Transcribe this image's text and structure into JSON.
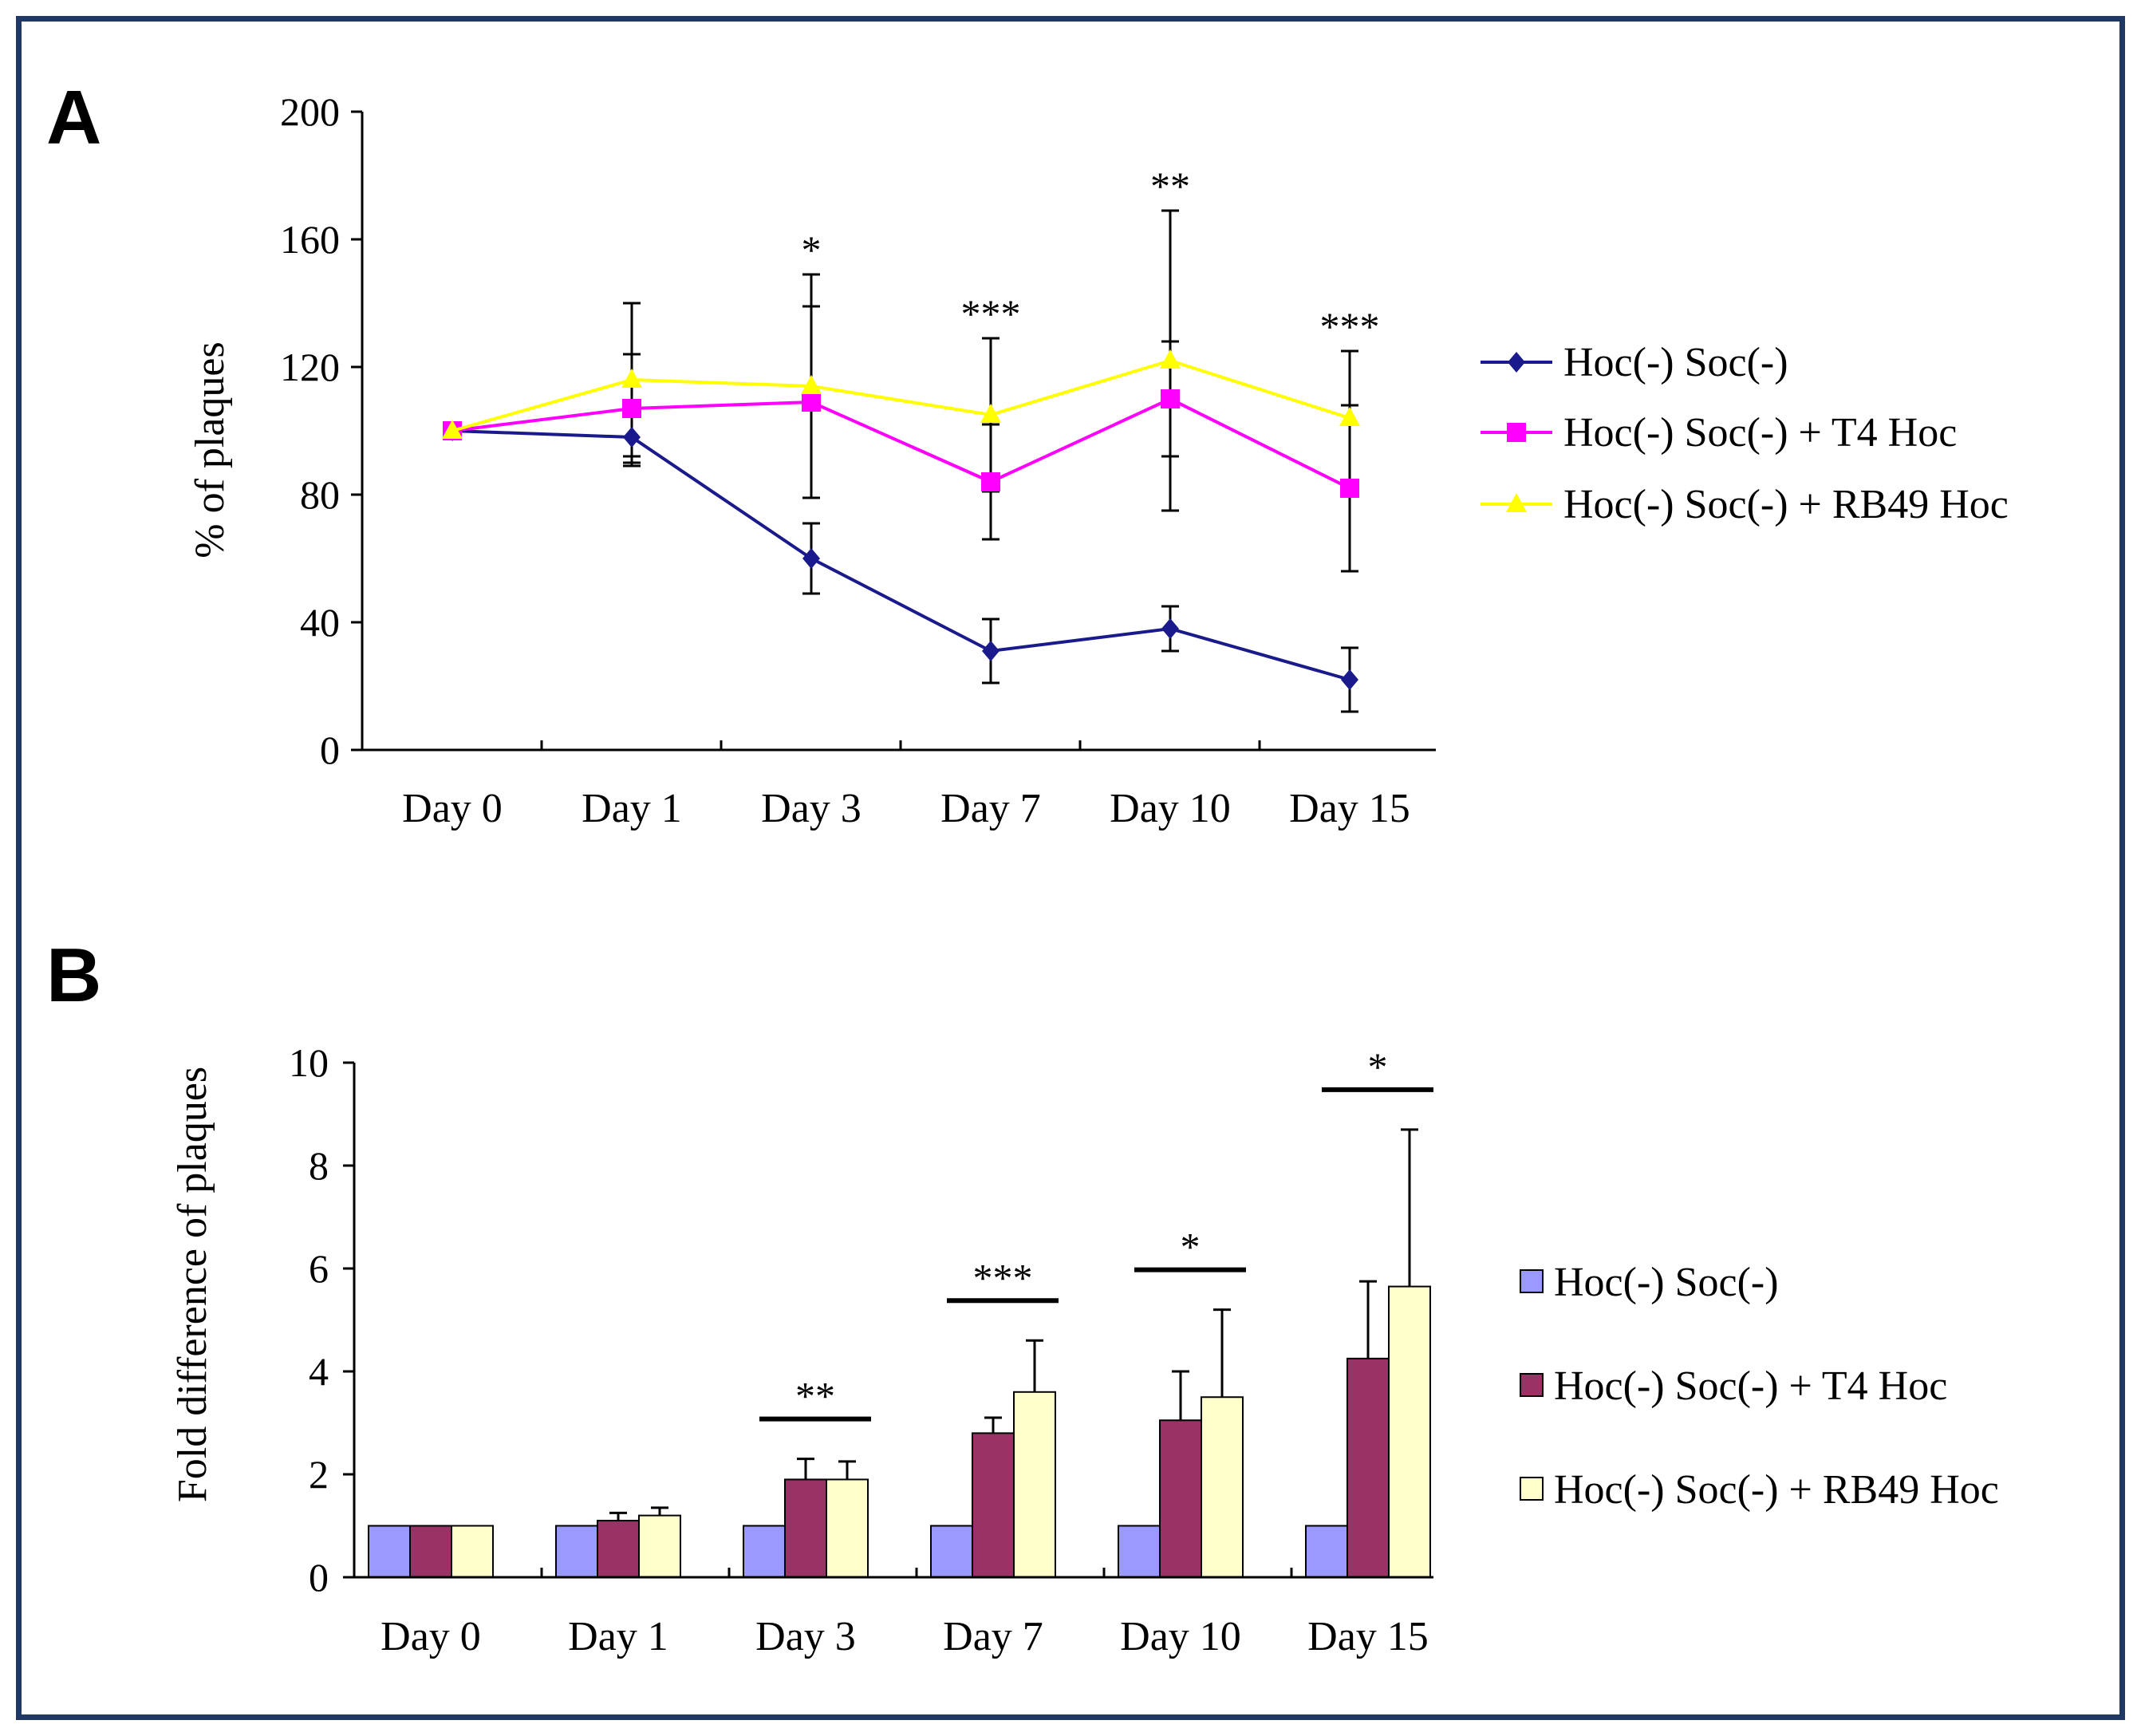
{
  "chart_data": [
    {
      "panel_label": "A",
      "type": "line",
      "ylabel": "% of plaques",
      "xlabel": "",
      "ylim": [
        0,
        200
      ],
      "yticks": [
        "0",
        "40",
        "80",
        "120",
        "160",
        "200"
      ],
      "categories": [
        "Day 0",
        "Day 1",
        "Day 3",
        "Day 7",
        "Day 10",
        "Day 15"
      ],
      "legend_position": "right",
      "series": [
        {
          "name": "Hoc(-) Soc(-)",
          "color": "#1a1a8c",
          "marker": "diamond",
          "values": [
            100,
            98,
            60,
            31,
            38,
            22
          ],
          "errors": [
            0,
            9,
            11,
            10,
            7,
            10
          ]
        },
        {
          "name": "Hoc(-) Soc(-) + T4 Hoc",
          "color": "#ff00ff",
          "marker": "square",
          "values": [
            100,
            107,
            109,
            84,
            110,
            82
          ],
          "errors": [
            0,
            17,
            30,
            18,
            18,
            26
          ]
        },
        {
          "name": "Hoc(-) Soc(-) + RB49 Hoc",
          "color": "#ffff00",
          "marker": "triangle",
          "values": [
            100,
            116,
            114,
            105,
            122,
            104
          ],
          "errors": [
            0,
            24,
            35,
            24,
            47,
            21
          ]
        }
      ],
      "annotations": [
        "",
        "",
        "*",
        "***",
        "**",
        "***"
      ]
    },
    {
      "panel_label": "B",
      "type": "bar",
      "ylabel": "Fold difference of plaques",
      "xlabel": "",
      "ylim": [
        0,
        10
      ],
      "yticks": [
        "0",
        "2",
        "4",
        "6",
        "8",
        "10"
      ],
      "categories": [
        "Day 0",
        "Day 1",
        "Day 3",
        "Day 7",
        "Day 10",
        "Day 15"
      ],
      "legend_position": "right",
      "series": [
        {
          "name": "Hoc(-) Soc(-)",
          "color": "#9999ff",
          "values": [
            1,
            1,
            1,
            1,
            1,
            1
          ],
          "errors": [
            0,
            0,
            0,
            0,
            0,
            0
          ]
        },
        {
          "name": "Hoc(-) Soc(-) + T4 Hoc",
          "color": "#993366",
          "values": [
            1,
            1.1,
            1.9,
            2.8,
            3.05,
            4.25
          ],
          "errors": [
            0,
            0.15,
            0.4,
            0.3,
            0.95,
            1.5
          ]
        },
        {
          "name": "Hoc(-) Soc(-) + RB49 Hoc",
          "color": "#ffffcc",
          "values": [
            1,
            1.2,
            1.9,
            3.6,
            3.5,
            5.65
          ],
          "errors": [
            0,
            0.15,
            0.35,
            1.0,
            1.7,
            3.05
          ]
        }
      ],
      "annotations": [
        "",
        "",
        "**",
        "***",
        "*",
        "*"
      ]
    }
  ]
}
